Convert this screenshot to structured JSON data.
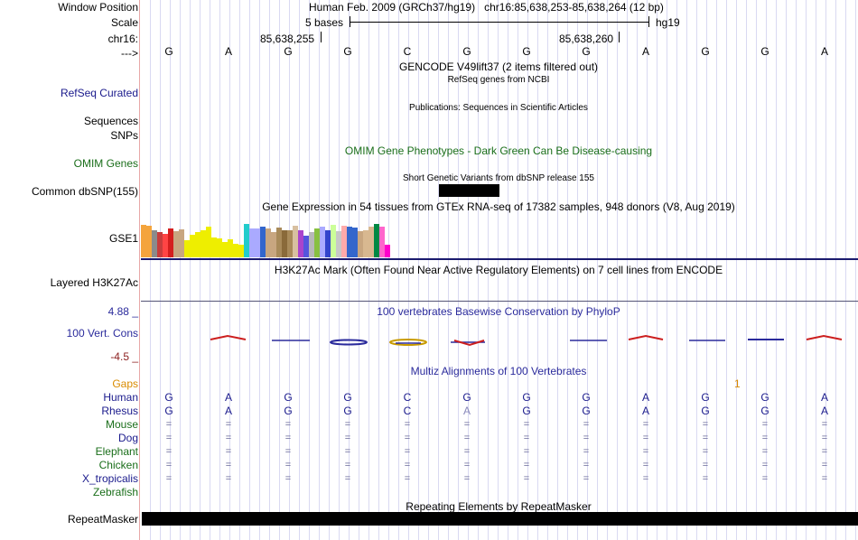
{
  "header": {
    "window_position_label": "Window Position",
    "window_position": "Human Feb. 2009 (GRCh37/hg19)   chr16:85,638,253-85,638,264 (12 bp)",
    "scale_label": "Scale",
    "scale_text": "5 bases",
    "assembly": "hg19",
    "chrom_label": "chr16:",
    "coord1": "85,638,255",
    "coord2": "85,638,260",
    "strand_label": "--->"
  },
  "sequence": [
    "G",
    "A",
    "G",
    "G",
    "C",
    "G",
    "G",
    "G",
    "A",
    "G",
    "G",
    "A"
  ],
  "tracks": {
    "gencode_title": "GENCODE V49lift37 (2 items filtered out)",
    "refseq_title": "RefSeq genes from NCBI",
    "refseq_label": "RefSeq Curated",
    "publications_title": "Publications: Sequences in Scientific Articles",
    "sequences_label": "Sequences",
    "snps_label": "SNPs",
    "omim_title": "OMIM Gene Phenotypes - Dark Green Can Be Disease-causing",
    "omim_label": "OMIM Genes",
    "dbsnp_title": "Short Genetic Variants from dbSNP release 155",
    "dbsnp_label": "Common dbSNP(155)",
    "gtex_title": "Gene Expression in 54 tissues from GTEx RNA-seq of 17382 samples, 948 donors (V8, Aug 2019)",
    "gtex_label": "GSE1",
    "h3k27ac_title": "H3K27Ac Mark (Often Found Near Active Regulatory Elements) on 7 cell lines from ENCODE",
    "h3k27ac_label": "Layered H3K27Ac",
    "phylop_title": "100 vertebrates Basewise Conservation by PhyloP",
    "phylop_label": "100 Vert. Cons",
    "phylop_max": "4.88 _",
    "phylop_min": "-4.5 _",
    "multiz_title": "Multiz Alignments of 100 Vertebrates",
    "gaps_label": "Gaps",
    "gaps_value": "1",
    "repeat_title": "Repeating Elements by RepeatMasker",
    "repeat_label": "RepeatMasker"
  },
  "gtex_bars": [
    {
      "value": 0.75,
      "color": "#f4a43c"
    },
    {
      "value": 0.72,
      "color": "#f4a43c"
    },
    {
      "value": 0.62,
      "color": "#8b8b8b"
    },
    {
      "value": 0.58,
      "color": "#c83c3c"
    },
    {
      "value": 0.55,
      "color": "#ff4444"
    },
    {
      "value": 0.66,
      "color": "#d41e1e"
    },
    {
      "value": 0.6,
      "color": "#c8a680"
    },
    {
      "value": 0.65,
      "color": "#c8a680"
    },
    {
      "value": 0.4,
      "color": "#eeee00"
    },
    {
      "value": 0.52,
      "color": "#eeee00"
    },
    {
      "value": 0.58,
      "color": "#eeee00"
    },
    {
      "value": 0.62,
      "color": "#eeee00"
    },
    {
      "value": 0.7,
      "color": "#eeee00"
    },
    {
      "value": 0.46,
      "color": "#eeee00"
    },
    {
      "value": 0.44,
      "color": "#eeee00"
    },
    {
      "value": 0.36,
      "color": "#eeee00"
    },
    {
      "value": 0.42,
      "color": "#eeee00"
    },
    {
      "value": 0.32,
      "color": "#eeee00"
    },
    {
      "value": 0.3,
      "color": "#eeee00"
    },
    {
      "value": 0.78,
      "color": "#22cccc"
    },
    {
      "value": 0.66,
      "color": "#aaaaff"
    },
    {
      "value": 0.66,
      "color": "#aaaaff"
    },
    {
      "value": 0.7,
      "color": "#3366cc"
    },
    {
      "value": 0.66,
      "color": "#c8a680"
    },
    {
      "value": 0.58,
      "color": "#c8a680"
    },
    {
      "value": 0.68,
      "color": "#a88a5a"
    },
    {
      "value": 0.62,
      "color": "#8a6a3a"
    },
    {
      "value": 0.62,
      "color": "#a88a5a"
    },
    {
      "value": 0.72,
      "color": "#d8c0a0"
    },
    {
      "value": 0.62,
      "color": "#aa44cc"
    },
    {
      "value": 0.5,
      "color": "#5555dd"
    },
    {
      "value": 0.58,
      "color": "#b8b8b8"
    },
    {
      "value": 0.66,
      "color": "#88c040"
    },
    {
      "value": 0.7,
      "color": "#aaaaff"
    },
    {
      "value": 0.62,
      "color": "#3344cc"
    },
    {
      "value": 0.74,
      "color": "#ccff99"
    },
    {
      "value": 0.6,
      "color": "#c8c8c8"
    },
    {
      "value": 0.72,
      "color": "#ffaaaa"
    },
    {
      "value": 0.7,
      "color": "#3366cc"
    },
    {
      "value": 0.68,
      "color": "#3366cc"
    },
    {
      "value": 0.6,
      "color": "#c8a680"
    },
    {
      "value": 0.62,
      "color": "#d8b890"
    },
    {
      "value": 0.7,
      "color": "#d8b890"
    },
    {
      "value": 0.78,
      "color": "#008844"
    },
    {
      "value": 0.7,
      "color": "#ff66cc"
    },
    {
      "value": 0.3,
      "color": "#ff00cc"
    }
  ],
  "multiz_species": [
    {
      "name": "Human",
      "color": "#1a1a8c",
      "type": "bases",
      "bases": [
        "G",
        "A",
        "G",
        "G",
        "C",
        "G",
        "G",
        "G",
        "A",
        "G",
        "G",
        "A"
      ]
    },
    {
      "name": "Rhesus",
      "color": "#1a1a8c",
      "type": "bases",
      "bases": [
        "G",
        "A",
        "G",
        "G",
        "C",
        "A",
        "G",
        "G",
        "A",
        "G",
        "G",
        "A"
      ]
    },
    {
      "name": "Mouse",
      "color": "#1a6e1a",
      "type": "eq"
    },
    {
      "name": "Dog",
      "color": "#1a1a8c",
      "type": "eq"
    },
    {
      "name": "Elephant",
      "color": "#1a6e1a",
      "type": "eq"
    },
    {
      "name": "Chicken",
      "color": "#1a6e1a",
      "type": "eq"
    },
    {
      "name": "X_tropicalis",
      "color": "#1a1a8c",
      "type": "eq"
    },
    {
      "name": "Zebrafish",
      "color": "#1a6e1a",
      "type": "none"
    }
  ],
  "colors": {
    "label_navy": "#1a1a8c",
    "omim_green": "#1a6e1a",
    "phylop_blue": "#2b2b9c",
    "phylop_red": "#cc1e1e",
    "gaps_orange": "#d98b00",
    "grid": "#d9d9f2"
  }
}
